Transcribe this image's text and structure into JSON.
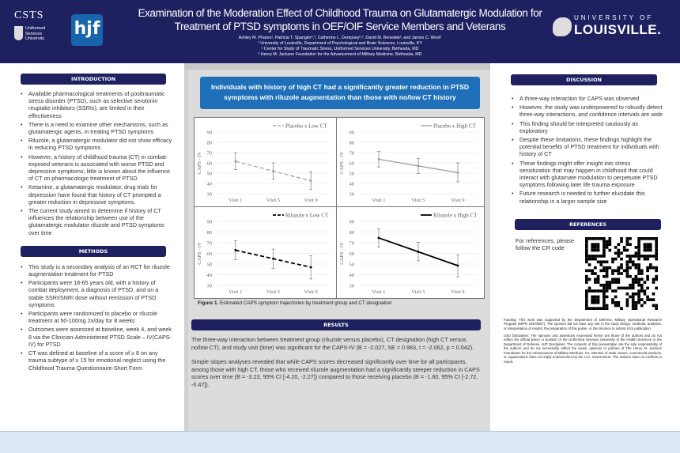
{
  "header": {
    "title_line1": "Examination of the Moderation Effect of Childhood Trauma on Glutamatergic Modulation for",
    "title_line2": "Treatment of PTSD symptoms in OEF/OIF Service Members and Veterans",
    "authors": "Ashley M. Phares¹, Patricia T. Spangler²,³, Catherine L. Dempsey²,³, David M. Benedek², and James C. West²",
    "affiliations": [
      "¹ University of Louisville, Department of Psychological and Brain Sciences, Louisville, KY",
      "² Center for Study of Traumatic Stress, Uniformed Services University, Bethesda, MD",
      "³ Henry M. Jackson Foundation for the Advancement of Military Medicine, Bethesda, MD"
    ],
    "logos": {
      "csts": "CSTS",
      "usu": "Uniformed Services University",
      "hjf": "hjf",
      "uofl_top": "UNIVERSITY OF",
      "uofl_bottom": "LOUISVILLE."
    }
  },
  "introduction": {
    "heading": "INTRODUCTION",
    "items": [
      "Available pharmacological treatments of posttraumatic stress disorder (PTSD), such as selective serotonin reuptake inhibitors (SSRIs), are limited in their effectiveness",
      "There is a need to examine other mechanisms, such as glutamatergic agents, in treating PTSD symptoms",
      "Riluzole, a glutamatergic modulator did not show efficacy in reducing PTSD symptoms",
      "However, a history of childhood trauma (CT) in combat-exposed veterans is associated with worse PTSD and depressive symptoms; little is known about the influence of CT on pharmacologic treatment of PTSD",
      "Ketamine, a glutamatergic modulator, drug trials for depression have found that history of CT prompted a greater reduction in depressive symptoms.",
      "The current study aimed to determine if history of CT influences the relationship between use of the glutamatergic modulator riluzole and PTSD symptoms over time"
    ]
  },
  "methods": {
    "heading": "METHODS",
    "items": [
      "This study is a secondary analysis of an RCT for riluzole augmentation treatment for PTSD",
      "Participants were 18-65 years old, with a history of combat deployment, a diagnosis of PTSD, and on a stable SSRI/SNRI dose without remission of PTSD symptoms",
      "Participants were randomized to placebo or riluzole treatment at 50-100mg 2x/day for 8 weeks",
      "Outcomes were assessed at baseline, week 4, and week 8 via the Clinician-Administered PTSD Scale – IV(CAPS-IV) for PTSD",
      "CT was defined at baseline of a score of ≥ 8 on any trauma subtype of ≥ 15 for emotional neglect using the Childhood Trauma Questionnaire-Short Form"
    ]
  },
  "key_finding": "Individuals with history of high CT had a significantly greater reduction in PTSD symptoms with riluzole augmentation than those with no/low CT history",
  "figure_caption_label": "Figure 1.",
  "figure_caption": " Estimated CAPS symptom trajectories by treatment group and CT designation",
  "chart_data": [
    {
      "type": "line",
      "series": [
        {
          "name": "Placebo x Low CT",
          "values": [
            61.5,
            52,
            42.5
          ],
          "error_low": [
            53.5,
            44,
            34
          ],
          "error_high": [
            69.5,
            60,
            51.5
          ],
          "color": "#999999",
          "dashed": true
        }
      ],
      "categories": [
        "Visit 1",
        "Visit 5",
        "Visit 9"
      ],
      "ylabel": "CAPS - IV",
      "ylim": [
        30,
        90
      ],
      "yticks": [
        30,
        40,
        50,
        60,
        70,
        80,
        90
      ],
      "grid": true,
      "legend": "top-right"
    },
    {
      "type": "line",
      "series": [
        {
          "name": "Placebo x High CT",
          "values": [
            63.5,
            57,
            50.5
          ],
          "error_low": [
            56,
            49.5,
            41.5
          ],
          "error_high": [
            71,
            64.5,
            60
          ],
          "color": "#999999",
          "dashed": false
        }
      ],
      "categories": [
        "Visit 1",
        "Visit 5",
        "Visit 9"
      ],
      "ylabel": "CAPS - IV",
      "ylim": [
        30,
        90
      ],
      "yticks": [
        30,
        40,
        50,
        60,
        70,
        80,
        90
      ],
      "grid": true,
      "legend": "top-right"
    },
    {
      "type": "line",
      "series": [
        {
          "name": "Riluzole x Low CT",
          "values": [
            63,
            55,
            47
          ],
          "error_low": [
            54,
            46,
            36
          ],
          "error_high": [
            72,
            64,
            58
          ],
          "color": "#000000",
          "dashed": true
        }
      ],
      "categories": [
        "Visit 1",
        "Visit 5",
        "Visit 9"
      ],
      "ylabel": "CAPS - IV",
      "ylim": [
        30,
        90
      ],
      "yticks": [
        30,
        40,
        50,
        60,
        70,
        80,
        90
      ],
      "grid": true,
      "legend": "top-right"
    },
    {
      "type": "line",
      "series": [
        {
          "name": "Riluzole  x High CT",
          "values": [
            74.5,
            61.5,
            48.5
          ],
          "error_low": [
            66,
            53,
            38
          ],
          "error_high": [
            83,
            70.5,
            58.5
          ],
          "color": "#000000",
          "dashed": false
        }
      ],
      "categories": [
        "Visit 1",
        "Visit 5",
        "Visit 9"
      ],
      "ylabel": "CAPS - IV",
      "ylim": [
        30,
        90
      ],
      "yticks": [
        30,
        40,
        50,
        60,
        70,
        80,
        90
      ],
      "grid": true,
      "legend": "top-right"
    }
  ],
  "results": {
    "heading": "RESULTS",
    "paragraphs": [
      "The three-way interaction between treatment group (riluzole versus placebo), CT designation (high CT versus no/low CT), and study visit (time) was significant for the CAPS-IV (B = -2.027, SE = 0.983, t = -2.062, p = 0.042).",
      "Simple slopes analyses revealed that while CAPS scores decreased significantly over time for all participants, among those with high CT, those who received riluzole augmentation had a significantly steeper reduction in CAPS scores over time (B = -3.23, 95% CI [-4.20, -2.27]) compared to those receiving placebo (B = -1.60, 95% CI [-2.72, -0.47])."
    ]
  },
  "discussion": {
    "heading": "DISCUSSION",
    "items": [
      "A three-way interaction for CAPS was observed",
      "However, the study was underpowered to robustly detect three-way interactions, and confidence intervals are wide",
      "This finding should be interpreted cautiously as exploratory",
      "Despite these limitations, these findings highlight the potential benefits of PTSD treatment for individuals with history of CT",
      "These findings might offer insight into stress sensitization that may happen in childhood that could interact with glutamate modulation to perpetuate PTSD symptoms following later life trauma exposure",
      "Future research is needed to further elucidate this relationship in a larger sample size"
    ]
  },
  "references": {
    "heading": "REFERENCES",
    "text": "For references, please follow the CR code"
  },
  "funding": "Funding: This work was supported by the Department of Defense, Military Operational Research Program (MIPR 10578007). The sponsor did not have any role in the study design, methods, analyses, or interpretation of results; the preparation of this poster, or the decision to submit it for publication.",
  "disclaimer": "USU Disclaimer: The opinions and assertions expressed herein are those of the authors and do not reflect the official policy or position of the Uniformed Services University of the Health Sciences or the Department of Defense. HJF Disclaimer: The contents of this presentation are the sole responsibility of the authors and do not necessarily reflect the views, opinions or policies of The Henry M. Jackson Foundation for the Advancement of Military Medicine, Inc. Mention of trade names, commercial products, or organizations does not imply endorsement by the U.S. Government. The authors have no conflicts to report.",
  "colors": {
    "navy": "#1e2060",
    "key_blue": "#1f70b8",
    "panel_gray": "#dcdcdc"
  }
}
